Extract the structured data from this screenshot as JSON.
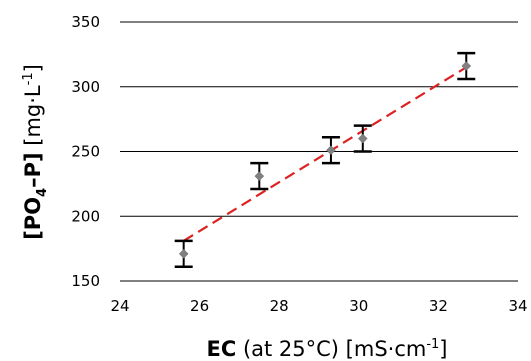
{
  "chart_data": {
    "type": "scatter",
    "x": [
      25.6,
      27.5,
      29.3,
      30.1,
      32.7
    ],
    "y": [
      171,
      231,
      251,
      260,
      316
    ],
    "error": [
      10,
      10,
      10,
      10,
      10
    ],
    "trendline": {
      "style": "dashed",
      "color": "#dd2222",
      "x": [
        25.6,
        32.7
      ],
      "y": [
        181,
        315
      ]
    },
    "marker_color": "#808080",
    "xlim": [
      24,
      34
    ],
    "ylim": [
      150,
      350
    ],
    "x_ticks": [
      "24",
      "26",
      "28",
      "30",
      "32",
      "34"
    ],
    "y_ticks": [
      "150",
      "200",
      "250",
      "300",
      "350"
    ],
    "grid": "horizontal",
    "xlabel": {
      "bold": "EC",
      "rest": " (at 25°C) [mS·cm",
      "sup": "-1",
      "close": "]"
    },
    "ylabel": {
      "bold": "[PO",
      "sub": "4",
      "bold2": "–P]",
      "rest": " [mg·L",
      "sup": "-1",
      "close": "]"
    }
  }
}
